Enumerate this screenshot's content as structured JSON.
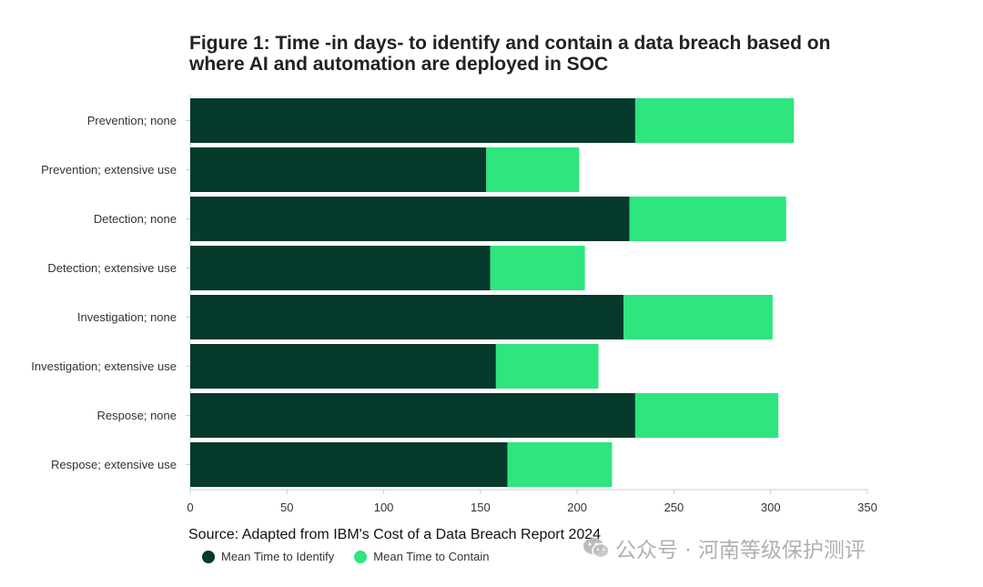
{
  "colors": {
    "identify": "#053a2c",
    "contain": "#2ee57e",
    "axis": "#cccccc",
    "text": "#333333"
  },
  "source_text": "Source: Adapted from IBM's Cost of a Data Breach Report 2024",
  "watermark": {
    "icon": "wechat-icon",
    "text": "公众号 · 河南等级保护测评"
  },
  "chart_data": {
    "type": "bar",
    "orientation": "horizontal",
    "stacked": true,
    "title_lines": [
      "Figure 1: Time -in days- to identify and contain a data breach based on",
      "where AI and automation are deployed in SOC"
    ],
    "categories": [
      "Prevention; none",
      "Prevention; extensive use",
      "Detection; none",
      "Detection; extensive use",
      "Investigation; none",
      "Investigation; extensive use",
      "Respose; none",
      "Respose; extensive use"
    ],
    "series": [
      {
        "name": "Mean Time to Identify",
        "color_key": "identify",
        "values": [
          230,
          153,
          227,
          155,
          224,
          158,
          230,
          164
        ]
      },
      {
        "name": "Mean Time to Contain",
        "color_key": "contain",
        "values": [
          82,
          48,
          81,
          49,
          77,
          53,
          74,
          54
        ]
      }
    ],
    "xlim": [
      0,
      350
    ],
    "xticks": [
      "0",
      "50",
      "100",
      "150",
      "200",
      "250",
      "300",
      "350"
    ],
    "grid": false,
    "legend_position": "bottom-left"
  }
}
